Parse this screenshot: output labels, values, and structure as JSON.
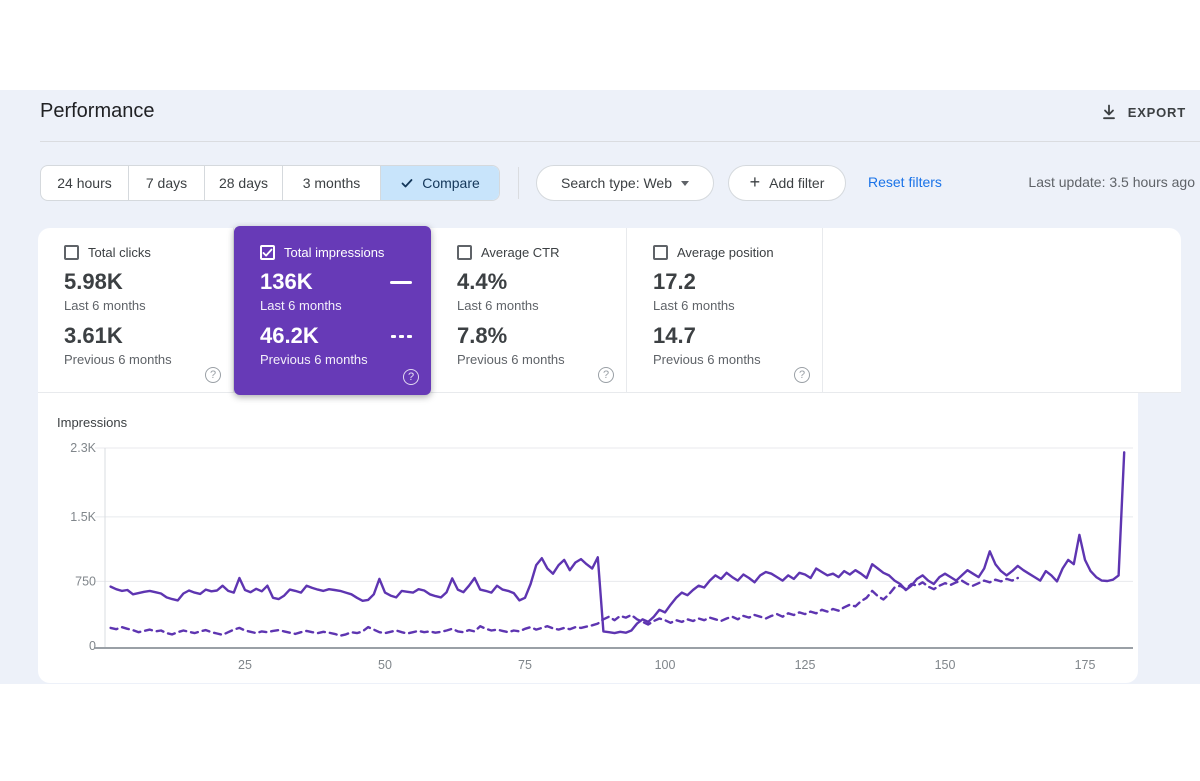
{
  "page": {
    "title": "Performance"
  },
  "header": {
    "export_label": "EXPORT"
  },
  "toolbar": {
    "date_tabs": [
      "24 hours",
      "7 days",
      "28 days",
      "3 months"
    ],
    "compare_label": "Compare",
    "search_type_label": "Search type: Web",
    "add_filter_label": "Add filter",
    "reset_filters_label": "Reset filters",
    "last_update": "Last update: 3.5 hours ago"
  },
  "metrics": [
    {
      "label": "Total clicks",
      "checked": false,
      "selected": false,
      "value1": "5.98K",
      "period1": "Last 6 months",
      "value2": "3.61K",
      "period2": "Previous 6 months"
    },
    {
      "label": "Total impressions",
      "checked": true,
      "selected": true,
      "value1": "136K",
      "period1": "Last 6 months",
      "value2": "46.2K",
      "period2": "Previous 6 months"
    },
    {
      "label": "Average CTR",
      "checked": false,
      "selected": false,
      "value1": "4.4%",
      "period1": "Last 6 months",
      "value2": "7.8%",
      "period2": "Previous 6 months"
    },
    {
      "label": "Average position",
      "checked": false,
      "selected": false,
      "value1": "17.2",
      "period1": "Last 6 months",
      "value2": "14.7",
      "period2": "Previous 6 months"
    }
  ],
  "colors": {
    "accent_purple": "#673ab7",
    "line_purple": "#5e35b1",
    "link_blue": "#1a73e8",
    "compare_bg": "#c8e4fb",
    "compare_text": "#14375a",
    "gridline": "#e8eaed",
    "axis_line": "#9aa0a6",
    "tick_text": "#80868b"
  },
  "chart_data": {
    "type": "line",
    "ylabel": "Impressions",
    "x_ticks": [
      25,
      50,
      75,
      100,
      125,
      150,
      175
    ],
    "x_range": [
      1,
      183
    ],
    "y_ticks": [
      {
        "label": "0",
        "value": 0
      },
      {
        "label": "750",
        "value": 750
      },
      {
        "label": "1.5K",
        "value": 1500
      },
      {
        "label": "2.3K",
        "value": 2300
      }
    ],
    "ylim": [
      0,
      2300
    ],
    "grid": true,
    "series": [
      {
        "name": "Last 6 months",
        "style": "solid",
        "values": [
          690,
          660,
          640,
          650,
          600,
          615,
          630,
          640,
          625,
          610,
          565,
          545,
          530,
          610,
          645,
          620,
          605,
          655,
          635,
          645,
          700,
          640,
          620,
          790,
          650,
          625,
          665,
          635,
          700,
          560,
          545,
          585,
          655,
          640,
          620,
          700,
          675,
          655,
          640,
          660,
          650,
          640,
          620,
          600,
          560,
          525,
          535,
          600,
          780,
          620,
          585,
          565,
          640,
          630,
          620,
          660,
          645,
          600,
          580,
          565,
          625,
          785,
          655,
          625,
          700,
          790,
          655,
          640,
          620,
          700,
          655,
          640,
          615,
          530,
          560,
          720,
          940,
          1020,
          900,
          840,
          940,
          1000,
          880,
          970,
          1010,
          950,
          900,
          1030,
          170,
          160,
          150,
          165,
          155,
          180,
          260,
          310,
          280,
          340,
          420,
          390,
          480,
          560,
          620,
          590,
          650,
          700,
          680,
          760,
          820,
          780,
          850,
          800,
          760,
          830,
          790,
          740,
          820,
          860,
          840,
          800,
          760,
          820,
          780,
          850,
          830,
          790,
          900,
          860,
          820,
          840,
          800,
          870,
          830,
          880,
          840,
          790,
          950,
          900,
          850,
          820,
          760,
          720,
          650,
          700,
          780,
          820,
          760,
          720,
          800,
          840,
          800,
          760,
          820,
          880,
          840,
          800,
          900,
          1100,
          950,
          870,
          820,
          870,
          930,
          880,
          840,
          800,
          760,
          870,
          820,
          750,
          900,
          1000,
          950,
          1290,
          1000,
          870,
          800,
          760,
          755,
          770,
          820,
          2250
        ]
      },
      {
        "name": "Previous 6 months",
        "style": "dashed",
        "values": [
          210,
          195,
          220,
          200,
          185,
          160,
          175,
          190,
          170,
          180,
          150,
          135,
          160,
          180,
          165,
          150,
          170,
          185,
          160,
          145,
          130,
          160,
          190,
          210,
          180,
          165,
          150,
          170,
          160,
          175,
          185,
          170,
          155,
          140,
          160,
          175,
          160,
          150,
          165,
          155,
          140,
          120,
          135,
          160,
          150,
          170,
          220,
          190,
          160,
          150,
          165,
          180,
          160,
          145,
          160,
          175,
          160,
          170,
          155,
          165,
          180,
          200,
          170,
          160,
          185,
          170,
          230,
          200,
          180,
          190,
          175,
          160,
          180,
          170,
          200,
          220,
          190,
          210,
          230,
          205,
          190,
          210,
          195,
          220,
          210,
          225,
          240,
          260,
          310,
          340,
          300,
          350,
          330,
          360,
          310,
          280,
          250,
          290,
          320,
          300,
          270,
          300,
          280,
          310,
          290,
          320,
          300,
          330,
          310,
          290,
          320,
          340,
          310,
          350,
          330,
          360,
          340,
          320,
          350,
          370,
          340,
          380,
          360,
          390,
          370,
          400,
          380,
          420,
          400,
          430,
          410,
          450,
          480,
          460,
          520,
          560,
          640,
          580,
          540,
          600,
          680,
          700,
          660,
          720,
          700,
          740,
          690,
          660,
          700,
          730,
          710,
          740,
          760,
          720,
          700,
          730,
          760,
          740,
          770,
          750,
          780,
          760,
          790
        ]
      }
    ]
  }
}
